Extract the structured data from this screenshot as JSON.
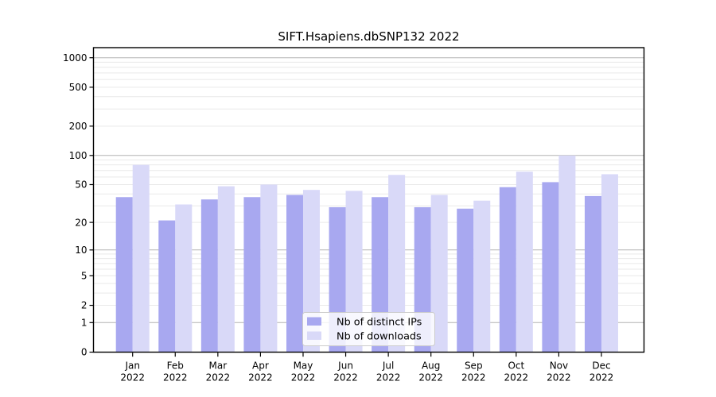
{
  "chart_data": {
    "type": "bar",
    "title": "SIFT.Hsapiens.dbSNP132 2022",
    "year": "2022",
    "months": [
      "Jan",
      "Feb",
      "Mar",
      "Apr",
      "May",
      "Jun",
      "Jul",
      "Aug",
      "Sep",
      "Oct",
      "Nov",
      "Dec"
    ],
    "categories": [
      "Jan 2022",
      "Feb 2022",
      "Mar 2022",
      "Apr 2022",
      "May 2022",
      "Jun 2022",
      "Jul 2022",
      "Aug 2022",
      "Sep 2022",
      "Oct 2022",
      "Nov 2022",
      "Dec 2022"
    ],
    "series": [
      {
        "id": "ips",
        "name": "Nb of distinct IPs",
        "color": "#a8a8f0",
        "values": [
          37,
          21,
          35,
          37,
          39,
          29,
          37,
          29,
          28,
          47,
          53,
          38
        ]
      },
      {
        "id": "downloads",
        "name": "Nb of downloads",
        "color": "#d9d9f8",
        "values": [
          80,
          31,
          48,
          50,
          44,
          43,
          63,
          39,
          34,
          68,
          100,
          64
        ]
      }
    ],
    "y_axis": {
      "ticks": [
        0,
        1,
        2,
        5,
        10,
        20,
        50,
        100,
        200,
        500,
        1000
      ],
      "scale": "log10(1+x)",
      "lim": [
        0,
        1270
      ]
    },
    "grid": {
      "major": [
        1,
        10,
        100,
        1000
      ],
      "minor": [
        2,
        3,
        4,
        5,
        6,
        7,
        8,
        9,
        20,
        30,
        40,
        50,
        60,
        70,
        80,
        90,
        200,
        300,
        400,
        500,
        600,
        700,
        800,
        900
      ],
      "major_color": "#b4b4b4",
      "minor_color": "#e9e9e9"
    },
    "legend": {
      "position": "lower center",
      "border_color": "#cccccc",
      "background": "rgba(255,255,255,0.8)"
    }
  }
}
